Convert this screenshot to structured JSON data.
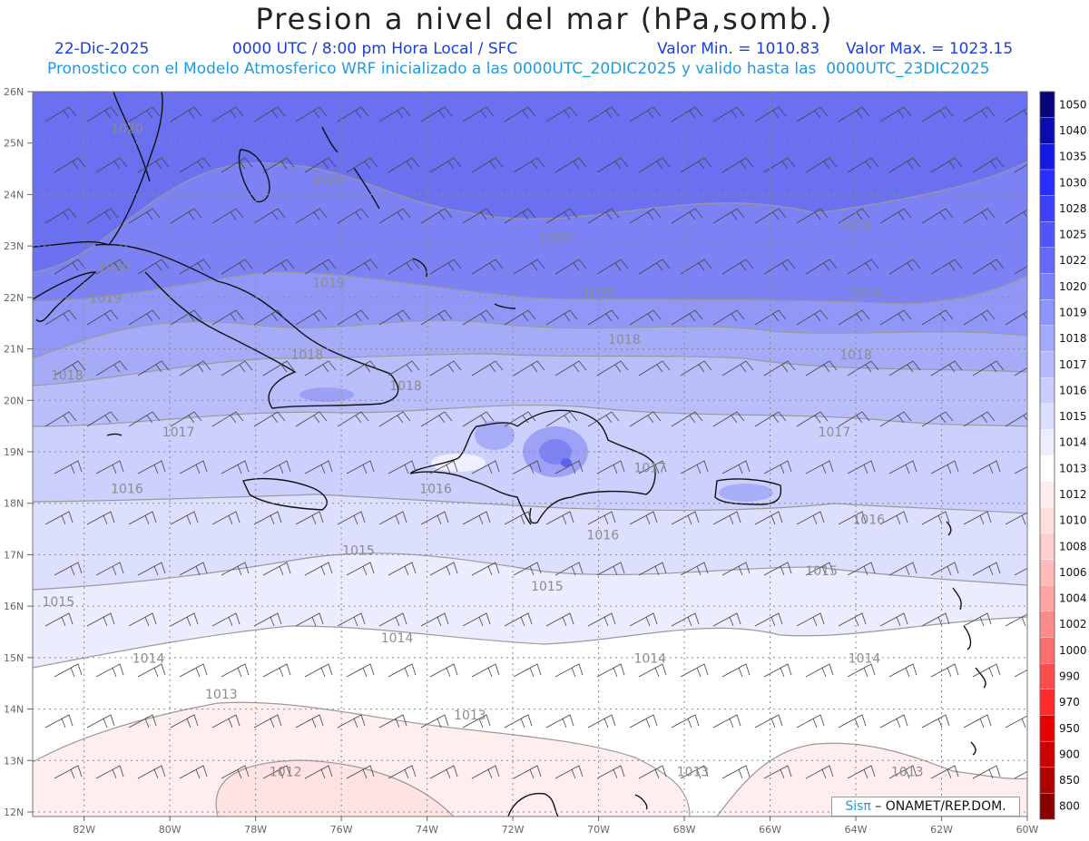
{
  "header": {
    "title": "Presion a nivel del mar (hPa,somb.)",
    "date": "22-Dic-2025",
    "time_info": "0000 UTC / 8:00 pm Hora Local / SFC",
    "min_label": "Valor Min. = 1010.83",
    "max_label": "Valor Max. = 1023.15",
    "forecast_info": "Pronostico con el Modelo Atmosferico WRF inicializado a las 0000UTC_20DIC2025 y valido hasta las  0000UTC_23DIC2025"
  },
  "map": {
    "lat_labels": [
      "26N",
      "25N",
      "24N",
      "23N",
      "22N",
      "21N",
      "20N",
      "19N",
      "18N",
      "17N",
      "16N",
      "15N",
      "14N",
      "13N",
      "12N"
    ],
    "lon_labels": [
      "82W",
      "80W",
      "78W",
      "76W",
      "74W",
      "72W",
      "70W",
      "68W",
      "66W",
      "64W",
      "62W",
      "60W"
    ],
    "lat_range": [
      12,
      26
    ],
    "lon_range": [
      -83.2,
      -60
    ],
    "isobar_labels": [
      {
        "text": "1020",
        "lon": -81.0,
        "lat": 25.2
      },
      {
        "text": "1020",
        "lon": -81.3,
        "lat": 22.5
      },
      {
        "text": "1020",
        "lon": -76.3,
        "lat": 24.2
      },
      {
        "text": "1020",
        "lon": -71.0,
        "lat": 23.1
      },
      {
        "text": "1020",
        "lon": -64.0,
        "lat": 23.3
      },
      {
        "text": "1019",
        "lon": -81.5,
        "lat": 21.9
      },
      {
        "text": "1019",
        "lon": -76.3,
        "lat": 22.2
      },
      {
        "text": "1019",
        "lon": -70.0,
        "lat": 22.0
      },
      {
        "text": "1019",
        "lon": -63.8,
        "lat": 22.0
      },
      {
        "text": "1018",
        "lon": -82.4,
        "lat": 20.4
      },
      {
        "text": "1018",
        "lon": -76.8,
        "lat": 20.8
      },
      {
        "text": "1018",
        "lon": -74.5,
        "lat": 20.2
      },
      {
        "text": "1018",
        "lon": -69.4,
        "lat": 21.1
      },
      {
        "text": "1018",
        "lon": -64.0,
        "lat": 20.8
      },
      {
        "text": "1017",
        "lon": -79.8,
        "lat": 19.3
      },
      {
        "text": "1017",
        "lon": -68.8,
        "lat": 18.6
      },
      {
        "text": "1017",
        "lon": -64.5,
        "lat": 19.3
      },
      {
        "text": "1016",
        "lon": -81.0,
        "lat": 18.2
      },
      {
        "text": "1016",
        "lon": -73.8,
        "lat": 18.2
      },
      {
        "text": "1016",
        "lon": -69.9,
        "lat": 17.3
      },
      {
        "text": "1016",
        "lon": -63.7,
        "lat": 17.6
      },
      {
        "text": "1015",
        "lon": -75.6,
        "lat": 17.0
      },
      {
        "text": "1015",
        "lon": -82.6,
        "lat": 16.0
      },
      {
        "text": "1015",
        "lon": -71.2,
        "lat": 16.3
      },
      {
        "text": "1015",
        "lon": -64.8,
        "lat": 16.6
      },
      {
        "text": "1014",
        "lon": -80.5,
        "lat": 14.9
      },
      {
        "text": "1014",
        "lon": -74.7,
        "lat": 15.3
      },
      {
        "text": "1014",
        "lon": -68.8,
        "lat": 14.9
      },
      {
        "text": "1014",
        "lon": -63.8,
        "lat": 14.9
      },
      {
        "text": "1013",
        "lon": -78.8,
        "lat": 14.2
      },
      {
        "text": "1013",
        "lon": -73.0,
        "lat": 13.8
      },
      {
        "text": "1013",
        "lon": -67.8,
        "lat": 12.7
      },
      {
        "text": "1013",
        "lon": -62.8,
        "lat": 12.7
      },
      {
        "text": "1012",
        "lon": -77.3,
        "lat": 12.7
      }
    ]
  },
  "colorbar": {
    "levels": [
      "800",
      "850",
      "900",
      "950",
      "970",
      "990",
      "1000",
      "1002",
      "1004",
      "1006",
      "1008",
      "1010",
      "1012",
      "1013",
      "1014",
      "1015",
      "1016",
      "1017",
      "1018",
      "1019",
      "1020",
      "1022",
      "1025",
      "1028",
      "1030",
      "1035",
      "1040",
      "1050"
    ],
    "colors": [
      "#8a0000",
      "#b00000",
      "#cc0000",
      "#e60000",
      "#ff2a2a",
      "#ff4d4d",
      "#ff6e6e",
      "#ff8a8a",
      "#ffa3a3",
      "#ffbaba",
      "#ffcfcf",
      "#ffdede",
      "#ffeded",
      "#ffffff",
      "#ecedff",
      "#dcdfff",
      "#c8ccff",
      "#b5baff",
      "#a3a9ff",
      "#8e94ff",
      "#7a80ff",
      "#6569ff",
      "#5155ff",
      "#3d41ff",
      "#2a2dff",
      "#1619e6",
      "#0a0cb0",
      "#06067a"
    ]
  },
  "credit": {
    "brand": "Sisπ",
    "text": " – ONAMET/REP.DOM."
  }
}
